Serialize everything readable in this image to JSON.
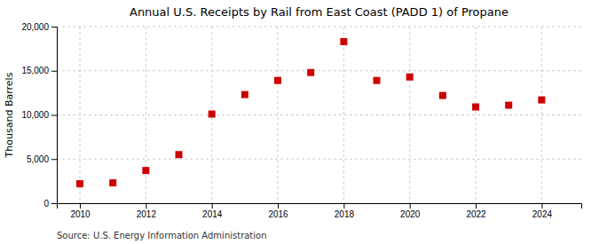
{
  "chart_data": {
    "type": "scatter",
    "title": "Annual U.S. Receipts by Rail from East Coast (PADD 1) of Propane",
    "ylabel": "Thousand Barrels",
    "annotations": [
      "Source: U.S. Energy Information Administration"
    ],
    "x": [
      2010,
      2011,
      2012,
      2013,
      2014,
      2015,
      2016,
      2017,
      2018,
      2019,
      2020,
      2021,
      2022,
      2023,
      2024
    ],
    "values": [
      2200,
      2300,
      3700,
      5500,
      10100,
      12300,
      13900,
      14800,
      18300,
      13900,
      14300,
      12200,
      10900,
      11100,
      11700
    ],
    "color": "#cc0000",
    "marker": "square",
    "xlim": [
      2009.3,
      2025.2
    ],
    "ylim": [
      0,
      20000
    ],
    "xticks": [
      2010,
      2012,
      2014,
      2016,
      2018,
      2020,
      2022,
      2024
    ],
    "yticks": [
      0,
      {
        "value": 5000,
        "label": "5,000"
      },
      {
        "value": 10000,
        "label": "10,000"
      },
      {
        "value": 15000,
        "label": "15,000"
      },
      {
        "value": 20000,
        "label": "20,000"
      }
    ],
    "grid": true
  }
}
